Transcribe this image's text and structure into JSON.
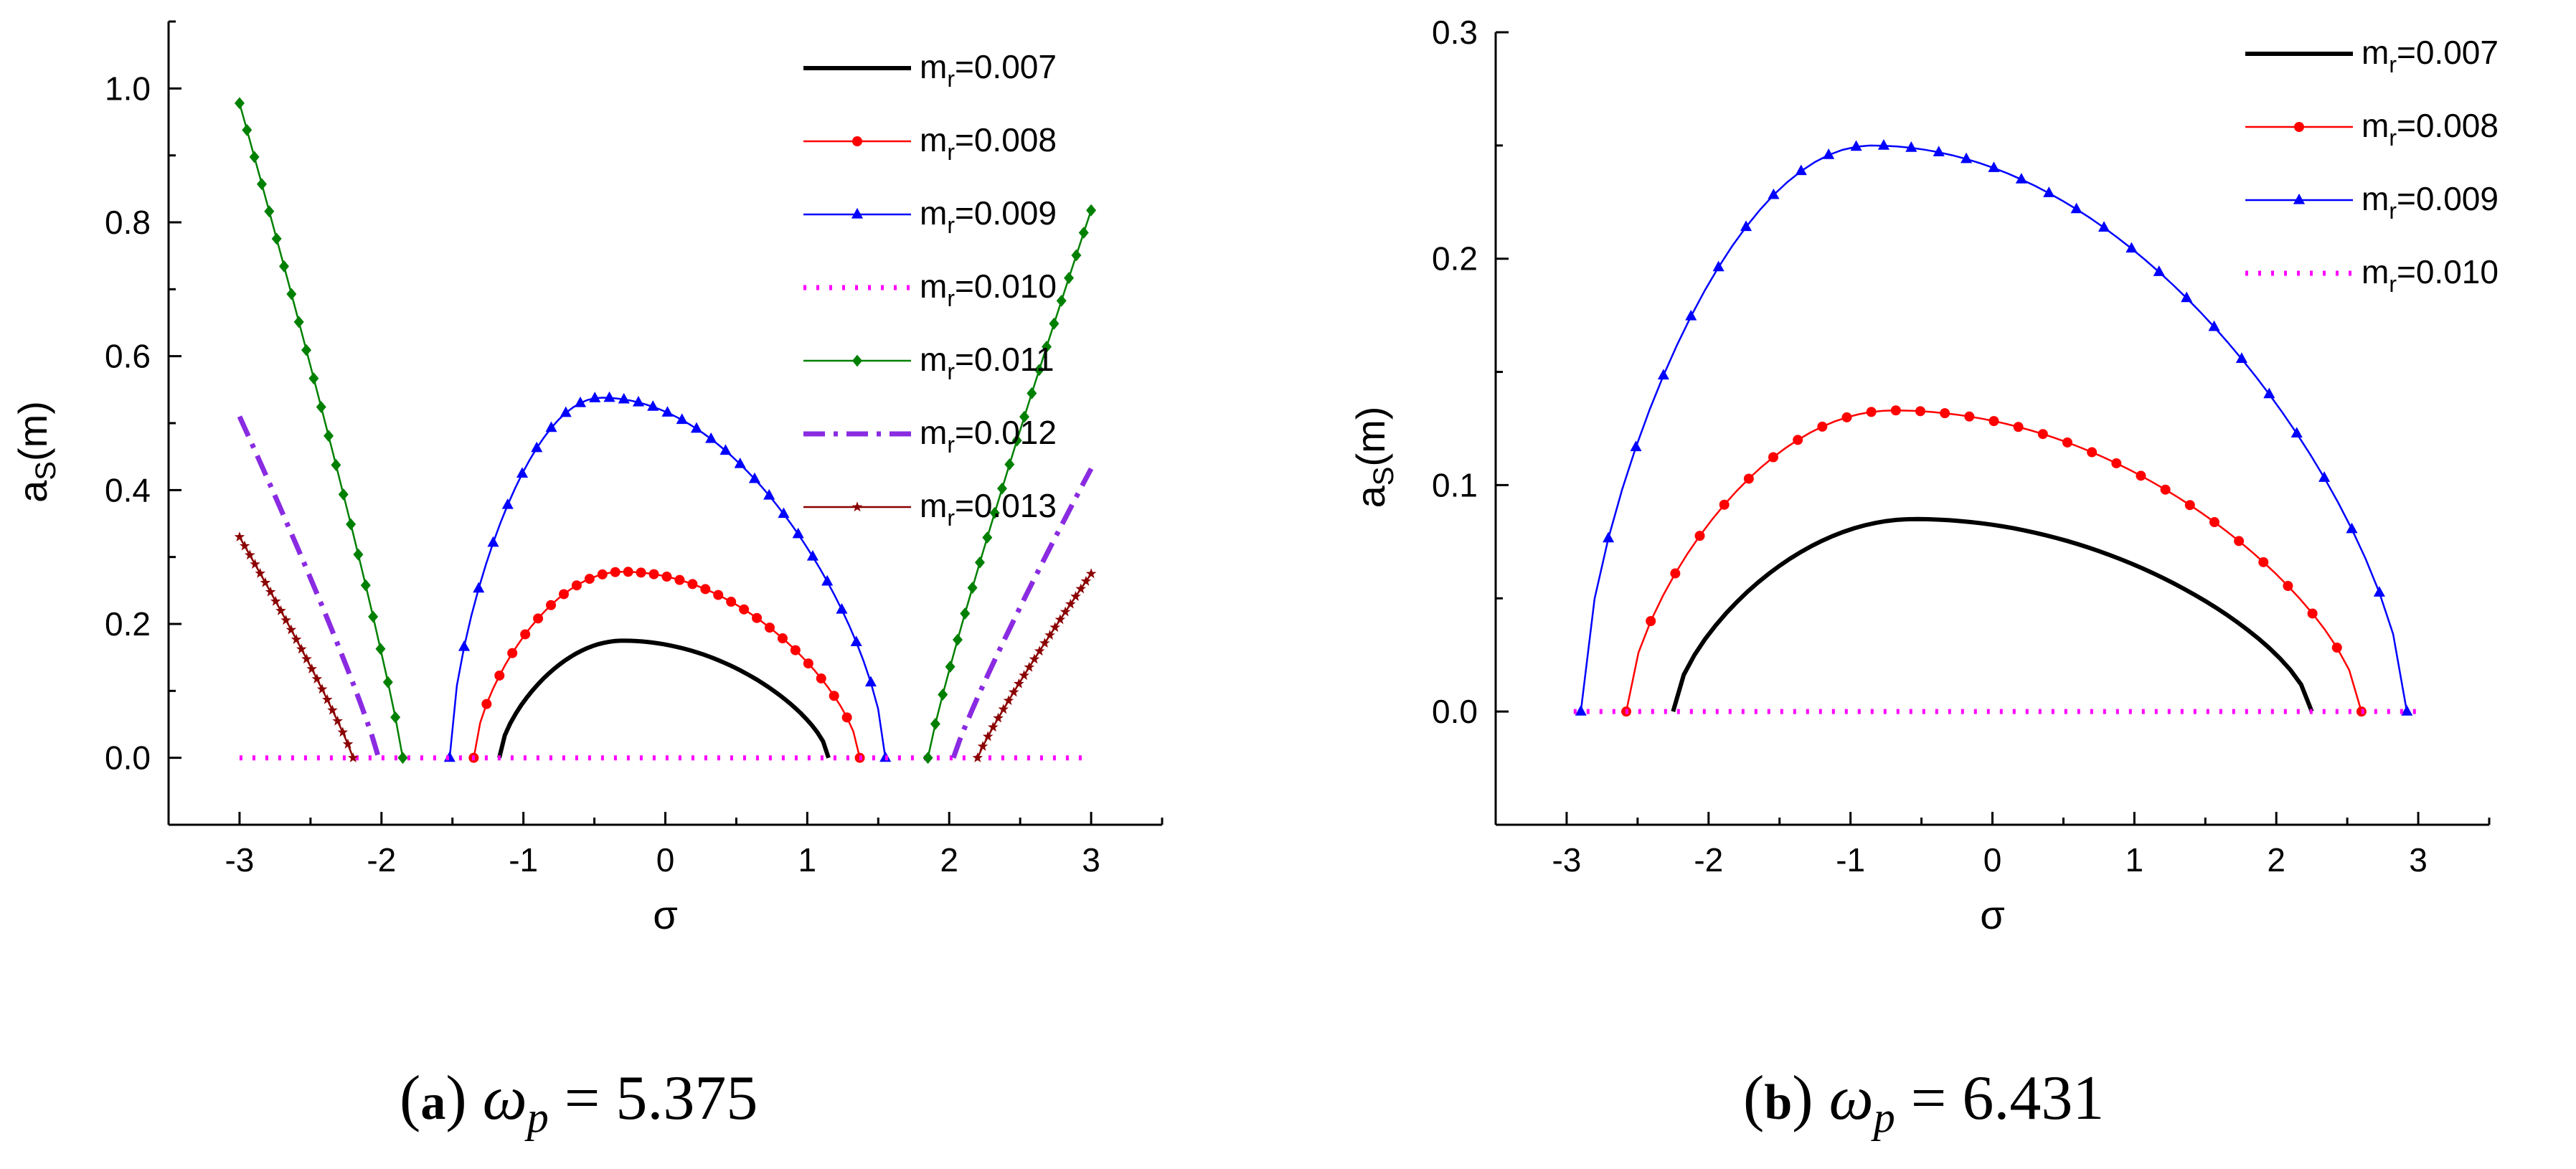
{
  "chart_data": [
    {
      "id": "a",
      "type": "line",
      "caption_label": "a",
      "caption_symbol": "ω",
      "caption_sub": "p",
      "caption_eq": "=",
      "caption_value": "5.375",
      "xlabel": "σ",
      "ylabel_main": "a",
      "ylabel_sub": "S",
      "ylabel_unit": "(m)",
      "xlim": [
        -3.5,
        3.5
      ],
      "ylim": [
        -0.1,
        1.1
      ],
      "xticks": [
        -3,
        -2,
        -1,
        0,
        1,
        2,
        3
      ],
      "yticks": [
        0.0,
        0.2,
        0.4,
        0.6,
        0.8,
        1.0
      ],
      "xtick_labels": [
        "-3",
        "-2",
        "-1",
        "0",
        "1",
        "2",
        "3"
      ],
      "ytick_labels": [
        "0.0",
        "0.2",
        "0.4",
        "0.6",
        "0.8",
        "1.0"
      ],
      "legend_position": "top-right",
      "series": [
        {
          "name": "m",
          "sub": "r",
          "value_label": "=0.007",
          "color": "#000000",
          "style": "solid",
          "marker": "none",
          "kind": "arc",
          "x0": -1.17,
          "x1": 1.15,
          "peak": 0.175,
          "peak_x": -0.3
        },
        {
          "name": "m",
          "sub": "r",
          "value_label": "=0.008",
          "color": "#ff0000",
          "style": "solid",
          "marker": "circle",
          "kind": "arc",
          "x0": -1.35,
          "x1": 1.37,
          "peak": 0.278,
          "peak_x": -0.3
        },
        {
          "name": "m",
          "sub": "r",
          "value_label": "=0.009",
          "color": "#0000ff",
          "style": "solid",
          "marker": "triangle",
          "kind": "arc",
          "x0": -1.52,
          "x1": 1.55,
          "peak": 0.538,
          "peak_x": -0.45
        },
        {
          "name": "m",
          "sub": "r",
          "value_label": "=0.010",
          "color": "#ff00ff",
          "style": "dotted",
          "marker": "none",
          "kind": "flat",
          "x0": -3.0,
          "x1": 3.0,
          "peak": 0.0
        },
        {
          "name": "m",
          "sub": "r",
          "value_label": "=0.011",
          "color": "#008000",
          "style": "solid",
          "marker": "diamond",
          "kind": "wings",
          "left": [
            [
              -3.0,
              0.978
            ],
            [
              -1.85,
              0.0
            ]
          ],
          "right": [
            [
              1.85,
              0.0
            ],
            [
              3.0,
              0.818
            ]
          ]
        },
        {
          "name": "m",
          "sub": "r",
          "value_label": "=0.012",
          "color": "#8a2be2",
          "style": "dashdot",
          "marker": "none",
          "kind": "wings",
          "left": [
            [
              -3.0,
              0.51
            ],
            [
              -2.02,
              0.0
            ]
          ],
          "right": [
            [
              2.03,
              0.0
            ],
            [
              3.0,
              0.432
            ]
          ]
        },
        {
          "name": "m",
          "sub": "r",
          "value_label": "=0.013",
          "color": "#8b0000",
          "style": "solid",
          "marker": "star",
          "kind": "wings",
          "left": [
            [
              -3.0,
              0.33
            ],
            [
              -2.2,
              0.0
            ]
          ],
          "right": [
            [
              2.2,
              0.0
            ],
            [
              3.0,
              0.275
            ]
          ]
        }
      ]
    },
    {
      "id": "b",
      "type": "line",
      "caption_label": "b",
      "caption_symbol": "ω",
      "caption_sub": "p",
      "caption_eq": "=",
      "caption_value": "6.431",
      "xlabel": "σ",
      "ylabel_main": "a",
      "ylabel_sub": "S",
      "ylabel_unit": "(m)",
      "xlim": [
        -3.5,
        3.5
      ],
      "ylim": [
        -0.05,
        0.3
      ],
      "xticks": [
        -3,
        -2,
        -1,
        0,
        1,
        2,
        3
      ],
      "yticks": [
        0.0,
        0.1,
        0.2,
        0.3
      ],
      "xtick_labels": [
        "-3",
        "-2",
        "-1",
        "0",
        "1",
        "2",
        "3"
      ],
      "ytick_labels": [
        "0.0",
        "0.1",
        "0.2",
        "0.3"
      ],
      "legend_position": "top-right",
      "series": [
        {
          "name": "m",
          "sub": "r",
          "value_label": "=0.007",
          "color": "#000000",
          "style": "solid",
          "marker": "none",
          "kind": "arc",
          "x0": -2.25,
          "x1": 2.25,
          "peak": 0.085,
          "peak_x": -0.55
        },
        {
          "name": "m",
          "sub": "r",
          "value_label": "=0.008",
          "color": "#ff0000",
          "style": "solid",
          "marker": "circle",
          "kind": "arc",
          "x0": -2.58,
          "x1": 2.6,
          "peak": 0.133,
          "peak_x": -0.7
        },
        {
          "name": "m",
          "sub": "r",
          "value_label": "=0.009",
          "color": "#0000ff",
          "style": "solid",
          "marker": "triangle",
          "kind": "arc",
          "x0": -2.9,
          "x1": 2.92,
          "peak": 0.25,
          "peak_x": -0.85
        },
        {
          "name": "m",
          "sub": "r",
          "value_label": "=0.010",
          "color": "#ff00ff",
          "style": "dotted",
          "marker": "none",
          "kind": "flat",
          "x0": -2.95,
          "x1": 3.0,
          "peak": 0.0
        }
      ]
    }
  ]
}
